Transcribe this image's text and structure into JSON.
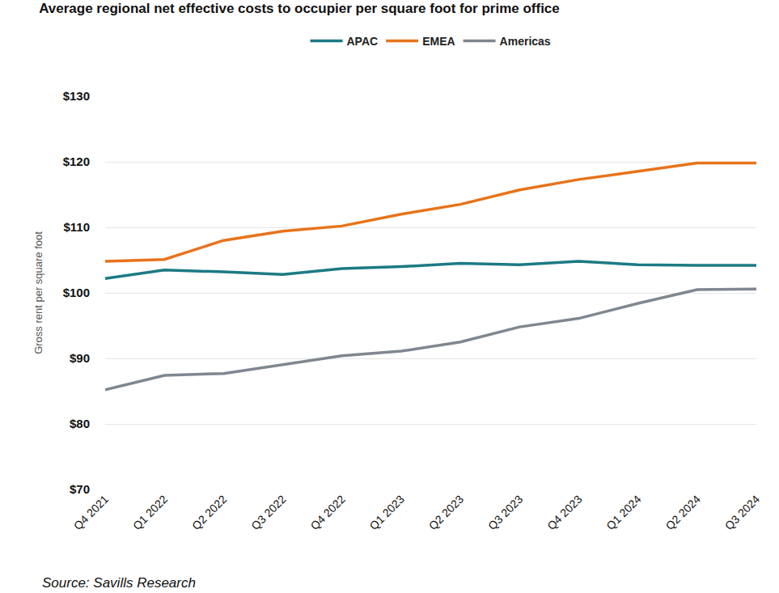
{
  "chart_data": {
    "type": "line",
    "title": "Average regional net effective costs to occupier per square foot for prime office",
    "y_label": "Gross rent per square foot",
    "annotations": [
      "Source: Savills Research"
    ],
    "categories": [
      "Q4 2021",
      "Q1 2022",
      "Q2 2022",
      "Q3 2022",
      "Q4 2022",
      "Q1 2023",
      "Q2 2023",
      "Q3 2023",
      "Q4 2023",
      "Q1 2024",
      "Q2 2024",
      "Q3 2024"
    ],
    "series": [
      {
        "name": "APAC",
        "color": "#1c7a84",
        "values": [
          102.2,
          103.5,
          103.2,
          102.8,
          103.7,
          104.0,
          104.5,
          104.3,
          104.8,
          104.3,
          104.2,
          104.2
        ]
      },
      {
        "name": "EMEA",
        "color": "#e8731a",
        "values": [
          104.8,
          105.1,
          108.0,
          109.4,
          110.2,
          112.0,
          113.5,
          115.7,
          117.3,
          118.6,
          119.8,
          119.8
        ]
      },
      {
        "name": "Americas",
        "color": "#7f8790",
        "values": [
          85.2,
          87.4,
          87.7,
          89.0,
          90.4,
          91.1,
          92.5,
          94.8,
          96.1,
          98.4,
          100.5,
          100.6
        ]
      }
    ],
    "ylim": [
      70,
      130
    ],
    "yticks": [
      {
        "value": 70,
        "label": "$70"
      },
      {
        "value": 80,
        "label": "$80"
      },
      {
        "value": 90,
        "label": "$90"
      },
      {
        "value": 100,
        "label": "$100"
      },
      {
        "value": 110,
        "label": "$110"
      },
      {
        "value": 120,
        "label": "$120"
      },
      {
        "value": 130,
        "label": "$130"
      }
    ],
    "grid": true,
    "legend": "top"
  }
}
